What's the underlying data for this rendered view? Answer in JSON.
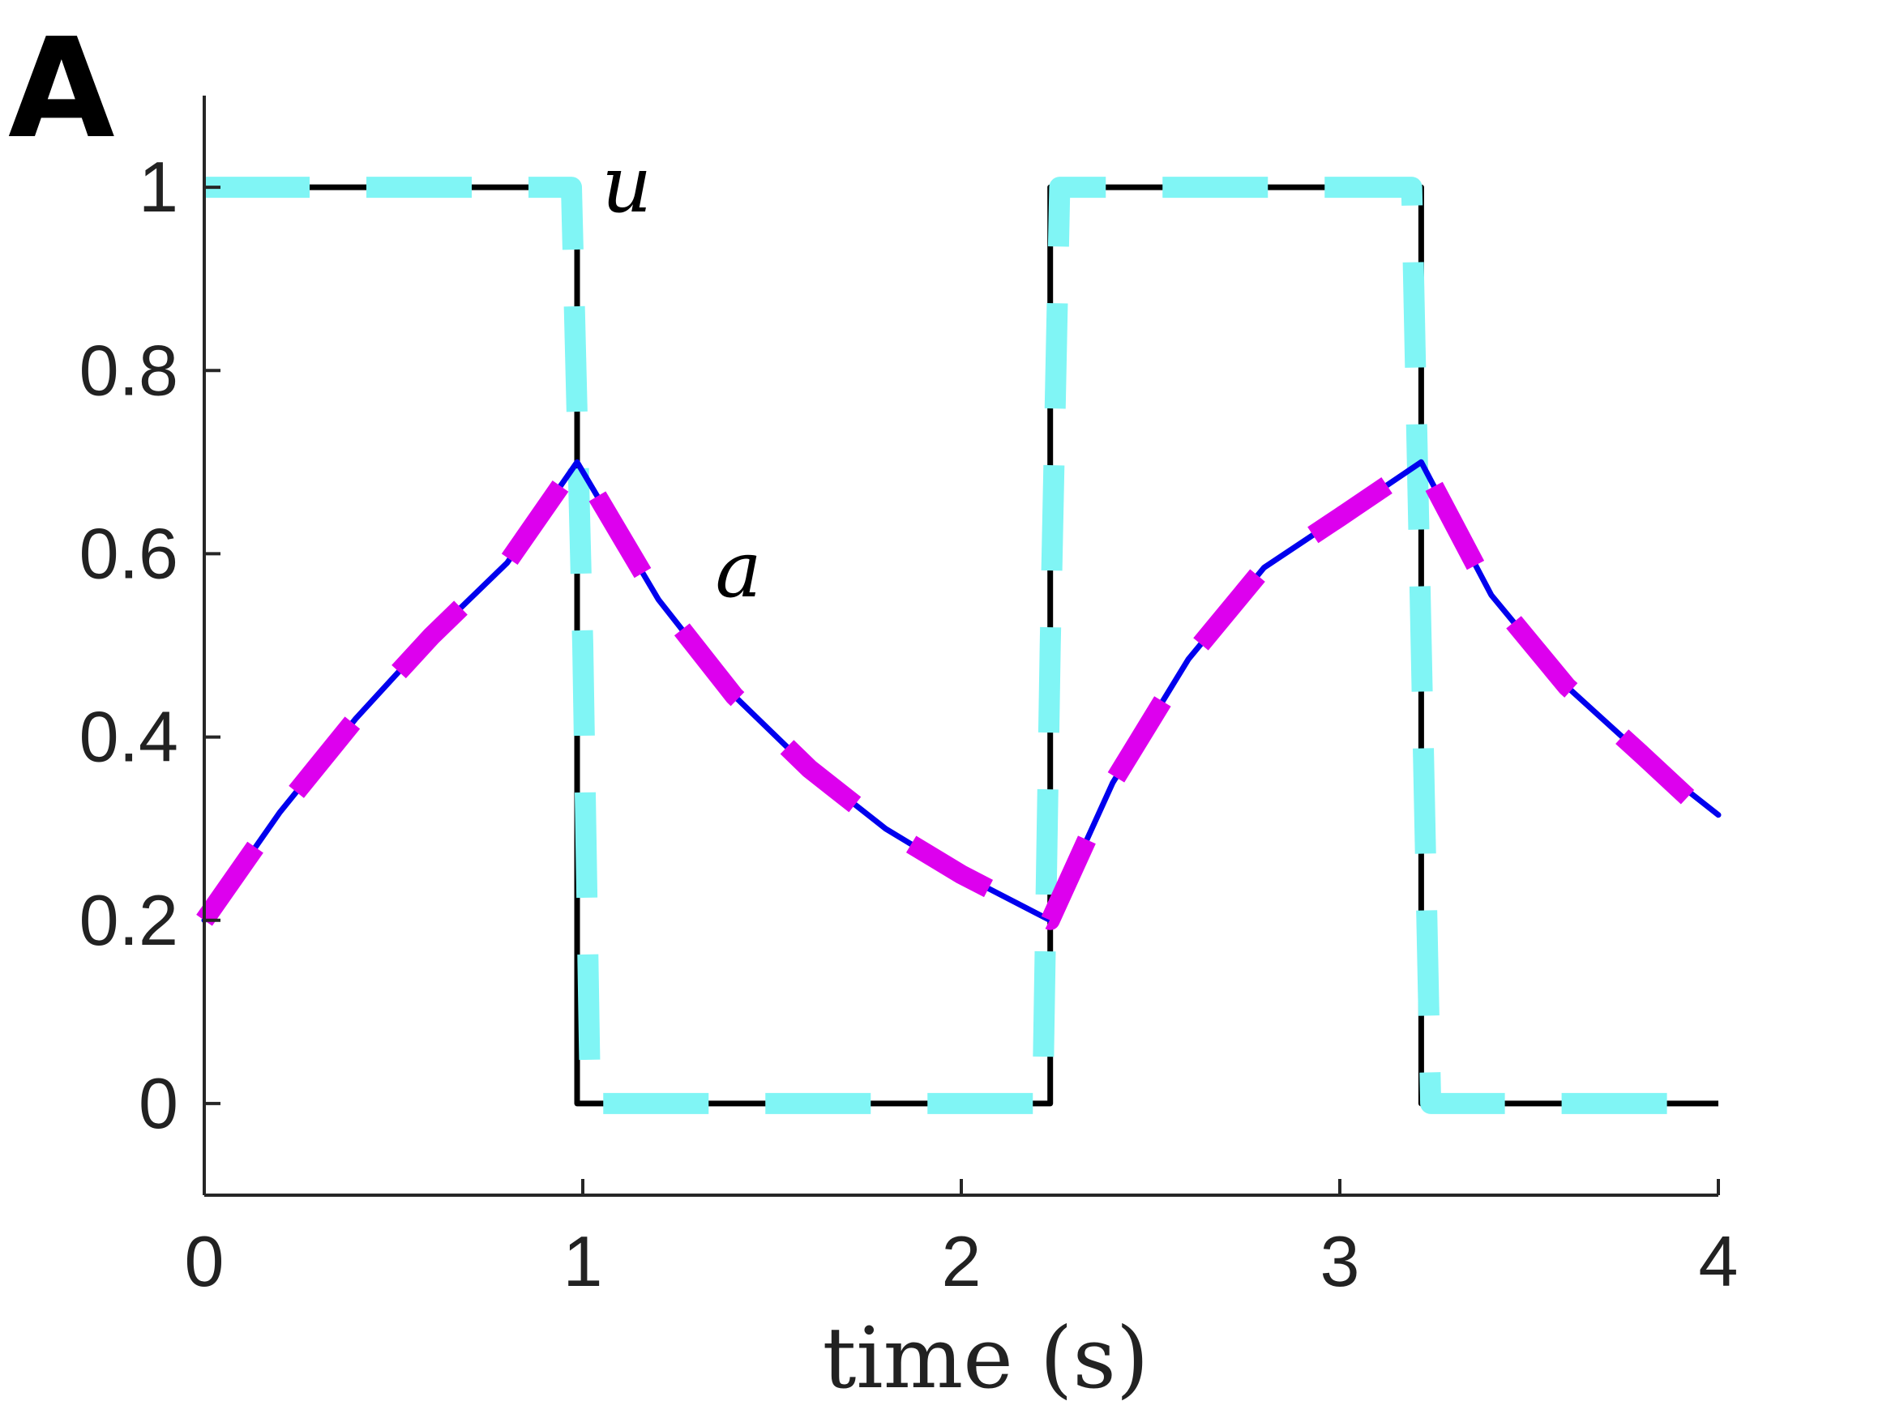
{
  "panel_label": "A",
  "chart_data": {
    "type": "line",
    "title": "",
    "xlabel": "time (s)",
    "ylabel": "",
    "xlim": [
      0,
      4
    ],
    "ylim": [
      -0.1,
      1.1
    ],
    "xticks": [
      0,
      1,
      2,
      3,
      4
    ],
    "xtick_labels": [
      "0",
      "1",
      "2",
      "3",
      "4"
    ],
    "yticks": [
      0,
      0.2,
      0.4,
      0.6,
      0.8,
      1
    ],
    "ytick_labels": [
      "0",
      "0.2",
      "0.4",
      "0.6",
      "0.8",
      "1"
    ],
    "grid": false,
    "legend": "none",
    "annotations": [
      {
        "text": "u",
        "x": 1.05,
        "y": 1.0
      },
      {
        "text": "a",
        "x": 1.35,
        "y": 0.58
      }
    ],
    "switch_times": {
      "u_off_1": 0.985,
      "u_on": 2.235,
      "u_off_2": 3.215
    },
    "series": [
      {
        "style": "solid",
        "color": "#000000",
        "x": [
          0,
          0.985,
          0.985,
          2.235,
          2.235,
          3.215,
          3.215,
          4.0
        ],
        "y": [
          1,
          1,
          0,
          0,
          1,
          1,
          0,
          0
        ]
      },
      {
        "style": "dashed",
        "color": "#80f5f5",
        "x": [
          0,
          0.97,
          1.0,
          1.02,
          2.215,
          2.235,
          2.26,
          3.19,
          3.215,
          3.24,
          4.0
        ],
        "y": [
          1,
          1,
          0.5,
          0,
          0,
          0.5,
          1,
          1,
          0.5,
          0,
          0
        ]
      },
      {
        "style": "solid",
        "color": "#0000ee",
        "x": [
          0,
          0.2,
          0.4,
          0.6,
          0.8,
          0.985,
          1.2,
          1.4,
          1.6,
          1.8,
          2.0,
          2.235,
          2.4,
          2.6,
          2.8,
          3.0,
          3.215,
          3.4,
          3.6,
          3.8,
          4.0
        ],
        "y": [
          0.2,
          0.318,
          0.42,
          0.51,
          0.59,
          0.7,
          0.55,
          0.445,
          0.365,
          0.3,
          0.25,
          0.2,
          0.35,
          0.485,
          0.585,
          0.64,
          0.7,
          0.555,
          0.455,
          0.38,
          0.315
        ]
      },
      {
        "style": "dashed",
        "color": "#dd00ee",
        "x": [
          0,
          0.2,
          0.4,
          0.6,
          0.8,
          0.985,
          1.2,
          1.4,
          1.6,
          1.8,
          2.0,
          2.235,
          2.4,
          2.6,
          2.8,
          3.0,
          3.215,
          3.4,
          3.6,
          3.8,
          3.93
        ],
        "y": [
          0.2,
          0.318,
          0.42,
          0.51,
          0.59,
          0.7,
          0.55,
          0.445,
          0.365,
          0.3,
          0.25,
          0.2,
          0.35,
          0.485,
          0.585,
          0.64,
          0.7,
          0.555,
          0.455,
          0.38,
          0.33
        ]
      }
    ]
  }
}
